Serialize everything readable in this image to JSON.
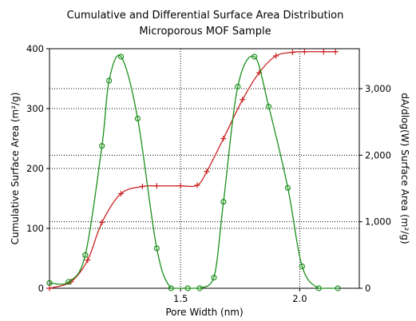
{
  "chart_data": {
    "type": "line",
    "title": "Cumulative and Differential Surface Area Distribution",
    "subtitle": "Microporous MOF Sample",
    "xlabel": "Pore Width (nm)",
    "ylabel_left": "Cumulative Surface Area (m²/g)",
    "ylabel_right": "dA/dlog(W) Surface Area (m²/g)",
    "xlim": [
      0.95,
      2.25
    ],
    "ylim_left": [
      0,
      400
    ],
    "ylim_right": [
      0,
      3600
    ],
    "x_ticks": [
      1.5,
      2.0
    ],
    "x_tick_labels": [
      "1.5",
      "2.0"
    ],
    "y_left_ticks": [
      0,
      100,
      200,
      300,
      400
    ],
    "y_left_tick_labels": [
      "0",
      "100",
      "200",
      "300",
      "400"
    ],
    "y_right_ticks": [
      0,
      1000,
      2000,
      3000
    ],
    "y_right_tick_labels": [
      "0",
      "1,000",
      "2,000",
      "3,000"
    ],
    "grid": true,
    "grid_style": "dotted",
    "colors": {
      "cumulative": "#cc2222",
      "differential": "#1a8f1a"
    },
    "series": [
      {
        "axis": "left",
        "marker": "plus",
        "x": [
          0.95,
          1.04,
          1.11,
          1.17,
          1.25,
          1.34,
          1.4,
          1.5,
          1.57,
          1.61,
          1.68,
          1.76,
          1.83,
          1.9,
          1.97,
          2.02,
          2.1,
          2.15
        ],
        "y": [
          0,
          11,
          47,
          110,
          158,
          170,
          171,
          171,
          172,
          195,
          250,
          315,
          360,
          388,
          394,
          395,
          395,
          395
        ]
      },
      {
        "axis": "right",
        "marker": "circle",
        "x": [
          0.95,
          1.03,
          1.1,
          1.17,
          1.2,
          1.25,
          1.32,
          1.4,
          1.46,
          1.53,
          1.58,
          1.64,
          1.68,
          1.74,
          1.81,
          1.87,
          1.95,
          2.01,
          2.08,
          2.16
        ],
        "y": [
          80,
          95,
          500,
          2140,
          3120,
          3480,
          2550,
          600,
          0,
          0,
          0,
          160,
          1300,
          3030,
          3480,
          2730,
          1510,
          330,
          0,
          0
        ]
      }
    ]
  }
}
